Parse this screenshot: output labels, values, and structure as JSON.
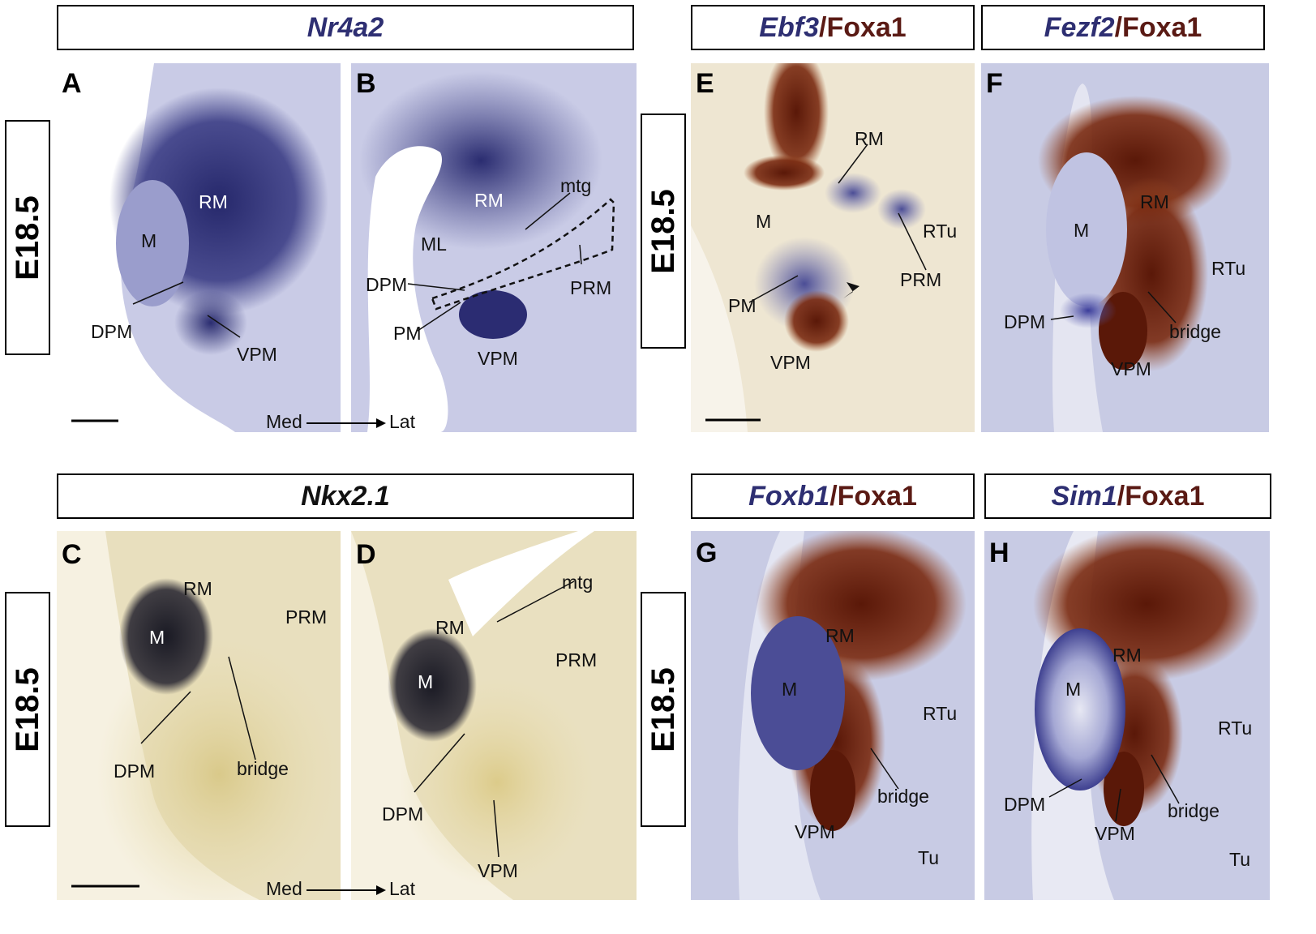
{
  "headers": {
    "nr4a2": "Nr4a2",
    "nkx21": "Nkx2.1",
    "ebf3": {
      "gene": "Ebf3",
      "sep": "/",
      "protein": "Foxa1"
    },
    "fezf2": {
      "gene": "Fezf2",
      "sep": "/",
      "protein": "Foxa1"
    },
    "foxb1": {
      "gene": "Foxb1",
      "sep": "/",
      "protein": "Foxa1"
    },
    "sim1": {
      "gene": "Sim1",
      "sep": "/",
      "protein": "Foxa1"
    }
  },
  "stage_labels": [
    "E18.5",
    "E18.5",
    "E18.5",
    "E18.5"
  ],
  "panels": {
    "A": {
      "letter": "A",
      "labels": {
        "rm": "RM",
        "m": "M",
        "dpm": "DPM",
        "vpm": "VPM"
      }
    },
    "B": {
      "letter": "B",
      "labels": {
        "rm": "RM",
        "mtg": "mtg",
        "ml": "ML",
        "dpm": "DPM",
        "prm": "PRM",
        "pm": "PM",
        "vpm": "VPM"
      },
      "axis": {
        "med": "Med",
        "lat": "Lat"
      }
    },
    "C": {
      "letter": "C",
      "labels": {
        "rm": "RM",
        "prm": "PRM",
        "m": "M",
        "dpm": "DPM",
        "bridge": "bridge"
      }
    },
    "D": {
      "letter": "D",
      "labels": {
        "mtg": "mtg",
        "rm": "RM",
        "prm": "PRM",
        "m": "M",
        "dpm": "DPM",
        "vpm": "VPM"
      },
      "axis": {
        "med": "Med",
        "lat": "Lat"
      }
    },
    "E": {
      "letter": "E",
      "labels": {
        "rm": "RM",
        "rtu": "RTu",
        "m": "M",
        "prm": "PRM",
        "pm": "PM",
        "vpm": "VPM"
      }
    },
    "F": {
      "letter": "F",
      "labels": {
        "rm": "RM",
        "m": "M",
        "rtu": "RTu",
        "dpm": "DPM",
        "bridge": "bridge",
        "vpm": "VPM"
      }
    },
    "G": {
      "letter": "G",
      "labels": {
        "rm": "RM",
        "m": "M",
        "rtu": "RTu",
        "bridge": "bridge",
        "vpm": "VPM",
        "tu": "Tu"
      }
    },
    "H": {
      "letter": "H",
      "labels": {
        "rm": "RM",
        "m": "M",
        "rtu": "RTu",
        "dpm": "DPM",
        "bridge": "bridge",
        "vpm": "VPM",
        "tu": "Tu"
      }
    }
  },
  "colors": {
    "nbt_blue": "#2e2f72",
    "dab_brown": "#6b1e0c",
    "tissue_lavender": "#c9cce6",
    "tissue_cream": "#eee6d4",
    "tissue_yellow": "#e3d6a6"
  }
}
